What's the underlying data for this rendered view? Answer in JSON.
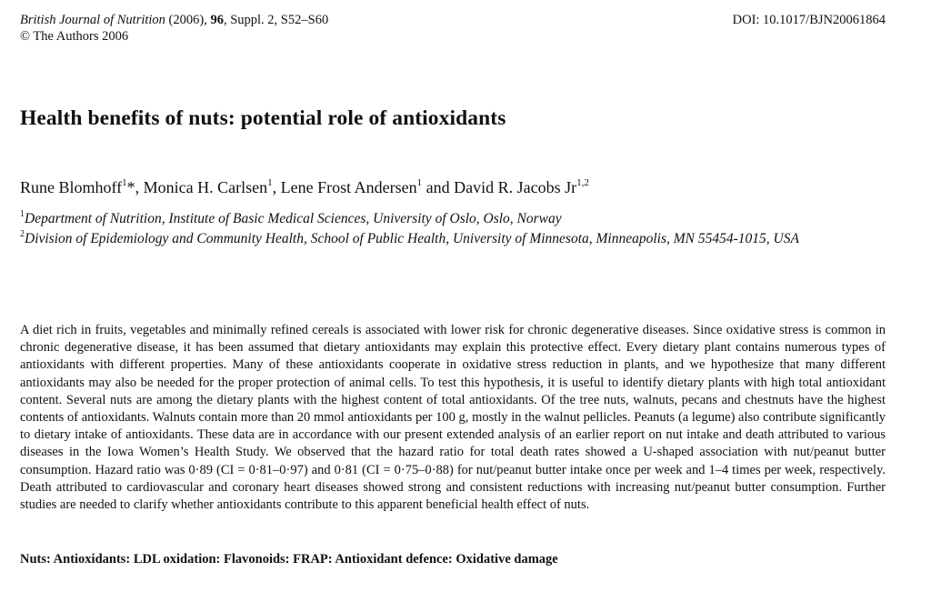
{
  "header": {
    "journal": "British Journal of Nutrition",
    "year": "(2006),",
    "volume": "96",
    "pages": ", Suppl. 2, S52–S60",
    "copyright": "© The Authors 2006",
    "doi": "DOI: 10.1017/BJN20061864"
  },
  "title": "Health benefits of nuts: potential role of antioxidants",
  "authors": [
    {
      "name": "Rune Blomhoff",
      "sup": "1",
      "suffix": "*, "
    },
    {
      "name": "Monica H. Carlsen",
      "sup": "1",
      "suffix": ", "
    },
    {
      "name": "Lene Frost Andersen",
      "sup": "1",
      "suffix": " and "
    },
    {
      "name": "David R. Jacobs Jr",
      "sup": "1,2",
      "suffix": ""
    }
  ],
  "affiliations": [
    {
      "sup": "1",
      "text": "Department of Nutrition, Institute of Basic Medical Sciences, University of Oslo, Oslo, Norway"
    },
    {
      "sup": "2",
      "text": "Division of Epidemiology and Community Health, School of Public Health, University of Minnesota, Minneapolis, MN 55454-1015, USA"
    }
  ],
  "abstract": "A diet rich in fruits, vegetables and minimally refined cereals is associated with lower risk for chronic degenerative diseases. Since oxidative stress is common in chronic degenerative disease, it has been assumed that dietary antioxidants may explain this protective effect. Every dietary plant contains numerous types of antioxidants with different properties. Many of these antioxidants cooperate in oxidative stress reduction in plants, and we hypothesize that many different antioxidants may also be needed for the proper protection of animal cells. To test this hypothesis, it is useful to identify dietary plants with high total antioxidant content. Several nuts are among the dietary plants with the highest content of total antioxidants. Of the tree nuts, walnuts, pecans and chestnuts have the highest contents of antioxidants. Walnuts contain more than 20 mmol antioxidants per 100 g, mostly in the walnut pellicles. Peanuts (a legume) also contribute significantly to dietary intake of antioxidants. These data are in accordance with our present extended analysis of an earlier report on nut intake and death attributed to various diseases in the Iowa Women’s Health Study. We observed that the hazard ratio for total death rates showed a U-shaped association with nut/peanut butter consumption. Hazard ratio was 0·89 (CI = 0·81–0·97) and 0·81 (CI = 0·75–0·88) for nut/peanut butter intake once per week and 1–4 times per week, respectively. Death attributed to cardiovascular and coronary heart diseases showed strong and consistent reductions with increasing nut/peanut butter consumption. Further studies are needed to clarify whether antioxidants contribute to this apparent beneficial health effect of nuts.",
  "keywords": "Nuts: Antioxidants: LDL oxidation: Flavonoids: FRAP: Antioxidant defence: Oxidative damage"
}
